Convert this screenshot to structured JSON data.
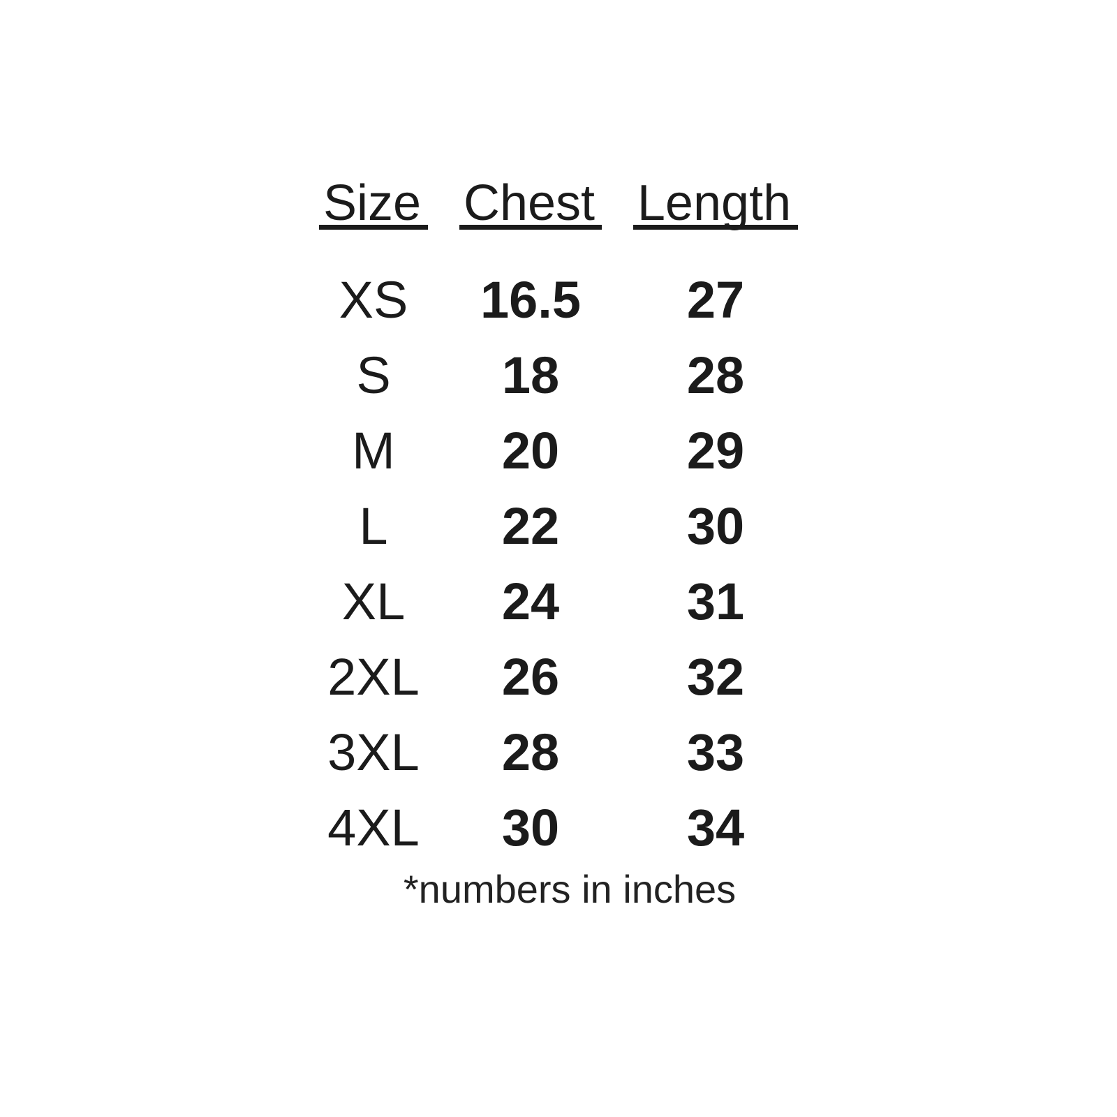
{
  "chart_data": {
    "type": "table",
    "columns": [
      "Size",
      "Chest",
      "Length"
    ],
    "rows": [
      [
        "XS",
        "16.5",
        "27"
      ],
      [
        "S",
        "18",
        "28"
      ],
      [
        "M",
        "20",
        "29"
      ],
      [
        "L",
        "22",
        "30"
      ],
      [
        "XL",
        "24",
        "31"
      ],
      [
        "2XL",
        "26",
        "32"
      ],
      [
        "3XL",
        "28",
        "33"
      ],
      [
        "4XL",
        "30",
        "34"
      ]
    ],
    "footnote": "*numbers in inches",
    "units": "inches",
    "layout": "three-column size chart, no gridlines, header underlined, values bold"
  },
  "colors": {
    "background": "#ffffff",
    "text": "#1b1b1b"
  }
}
